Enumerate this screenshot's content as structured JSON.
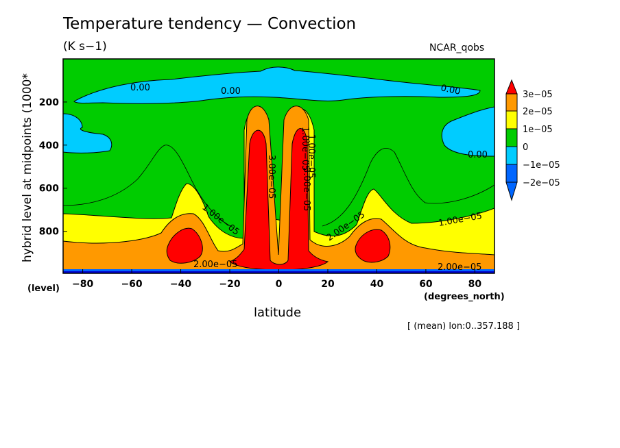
{
  "chart_data": {
    "type": "heatmap",
    "subtype": "filled-contour",
    "title": "Temperature tendency — Convection",
    "units": "(K s−1)",
    "dataset": "NCAR_qobs",
    "xlabel": "latitude",
    "x_units": "(degrees_north)",
    "ylabel": "hybrid level at midpoints (1000*",
    "y_units": "(level)",
    "footnote": "[ (mean) lon:0..357.188 ]",
    "xlim": [
      -88,
      88
    ],
    "ylim": [
      995,
      0
    ],
    "y_inverted": true,
    "x_ticks": [
      "−80",
      "−60",
      "−40",
      "−20",
      "0",
      "20",
      "40",
      "60",
      "80"
    ],
    "x_tick_values": [
      -80,
      -60,
      -40,
      -20,
      0,
      20,
      40,
      60,
      80
    ],
    "y_ticks": [
      "200",
      "400",
      "600",
      "800"
    ],
    "y_tick_values": [
      200,
      400,
      600,
      800
    ],
    "contour_labels": [
      "0.00",
      "0.00",
      "0.00",
      "0.00",
      "1.00e−05",
      "1.00e−05",
      "1.00e−05",
      "2.00e−05",
      "2.00e−05",
      "2.00e−05",
      "3.00e−05",
      "3.00e−05",
      "1.00e−05"
    ],
    "colorbar": {
      "labels": [
        "3e−05",
        "2e−05",
        "1e−05",
        "0",
        "−1e−05",
        "−2e−05"
      ],
      "colors": [
        "#ff0000",
        "#ff9900",
        "#ffff00",
        "#00cc00",
        "#00ccff",
        "#0066ff",
        "#0000cc"
      ]
    },
    "regions": [
      {
        "level": "0 to 1e-05",
        "color": "#00cc00",
        "description": "background"
      },
      {
        "level": "-1e-05 to 0",
        "color": "#00ccff",
        "location": "upper levels ~100-220 and poles ~200-450"
      },
      {
        "level": "1e-05 to 2e-05",
        "color": "#ffff00",
        "location": "lower levels, midlatitude plumes"
      },
      {
        "level": "2e-05 to 3e-05",
        "color": "#ff9900",
        "location": "boundary layer and around maxima"
      },
      {
        "level": ">3e-05",
        "color": "#ff0000",
        "location": "tropical towers ~-8 and ~8 lat, midlatitude cells ~-38 and ~38 lat"
      }
    ]
  }
}
